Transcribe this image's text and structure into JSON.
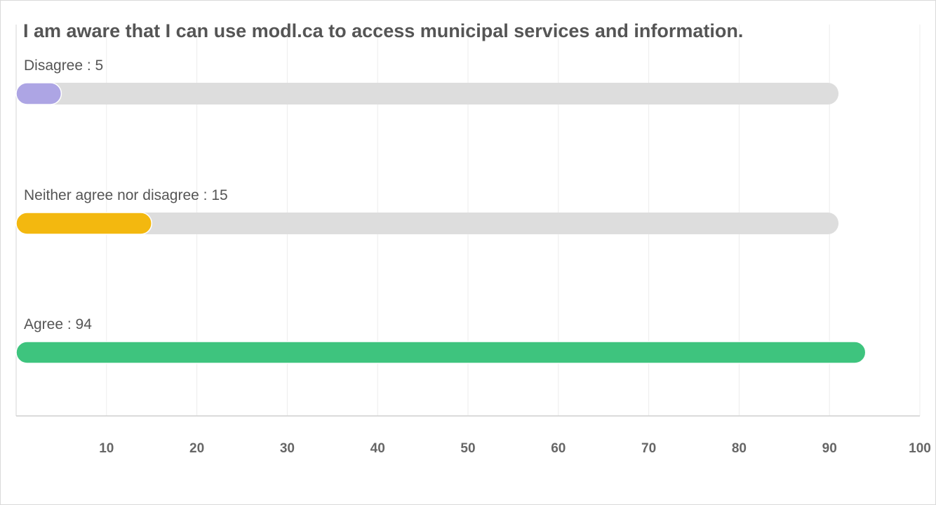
{
  "chart_data": {
    "type": "bar",
    "orientation": "horizontal",
    "title": "I am aware that I can use modl.ca to access municipal services and information.",
    "categories": [
      "Disagree",
      "Neither agree nor disagree",
      "Agree"
    ],
    "values": [
      5,
      15,
      94
    ],
    "labels": [
      "Disagree : 5",
      "Neither agree nor disagree : 15",
      "Agree : 94"
    ],
    "colors": [
      "#ada5e4",
      "#f3b80f",
      "#3ec47e"
    ],
    "track_max": 91,
    "track_color": "#dddddd",
    "xlim": [
      0,
      100
    ],
    "xticks": [
      10,
      20,
      30,
      40,
      50,
      60,
      70,
      80,
      90,
      100
    ],
    "xlabel": "",
    "ylabel": "",
    "grid": true,
    "legend": "none"
  }
}
